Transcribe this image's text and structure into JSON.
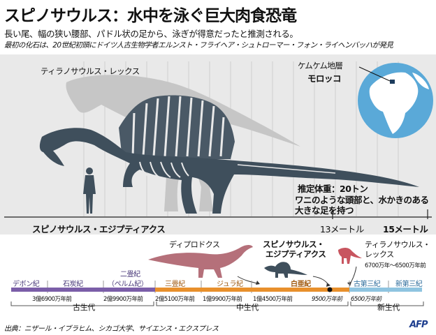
{
  "header": {
    "title": "スピノサウルス：水中を泳ぐ巨大肉食恐竜",
    "subtitle": "長い尾、幅の狭い腰部、パドル状の足から、泳ぎが得意だったと推測される。",
    "note": "最初の化石は、20世紀初頭にドイツ人古生物学者エルンスト・フライヘア・シュトローマー・フォン・ライヘンバッハが発見"
  },
  "figure": {
    "trex_label": "ティラノサウルス・レックス",
    "location_name": "ケムケム地層",
    "location_country": "モロッコ",
    "weight_label": "推定体重：20トン",
    "feature_line1": "ワニのような頭部と、水かきのある",
    "feature_line2": "大きな足を持つ",
    "species_label": "スピノサウルス・エジプティアクス",
    "length_13": "13メートル",
    "length_15": "15メートル"
  },
  "timeline": {
    "silhouettes": {
      "diplodocus": "ディプロドクス",
      "spino_line1": "スピノサウルス・",
      "spino_line2": "エジプティアクス",
      "trex_line1": "ティラノサウルス・",
      "trex_line2": "レックス",
      "trex_range": "6700万年〜6500万年前"
    },
    "periods": {
      "devonian": "デボン紀",
      "carboniferous": "石炭紀",
      "permian_line1": "二畳紀",
      "permian_line2": "（ペルム紀）",
      "triassic": "三畳紀",
      "jurassic": "ジュラ紀",
      "cretaceous": "白亜紀",
      "paleogene": "古第三紀",
      "neogene": "新第三紀"
    },
    "dates": {
      "d1": "3億6900万年前",
      "d2": "2億9900万年前",
      "d3": "2億5100万年前",
      "d4": "1億9900万年前",
      "d5": "1億4500万年前",
      "d6": "9500万年前",
      "d7": "6500万年前"
    },
    "eras": {
      "paleozoic": "古生代",
      "mesozoic": "中生代",
      "cenozoic": "新生代"
    },
    "colors": {
      "paleozoic": "#7b5ea8",
      "mesozoic": "#e8902c",
      "cenozoic": "#8fc4e0",
      "diplodocus": "#b5707a",
      "spinosaurus": "#3f4f5c",
      "trex": "#c8555f"
    }
  },
  "footer": {
    "source": "出典：ニザール・イブラヒム、シカゴ大学、サイエンス・エクスプレス",
    "agency": "AFP"
  }
}
